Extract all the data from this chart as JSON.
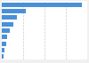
{
  "values": [
    18700000,
    5600000,
    3500000,
    2700000,
    1900000,
    1300000,
    950000,
    600000,
    350000
  ],
  "bar_color": "#4a90d9",
  "background_color": "#f0f0f0",
  "plot_bg_color": "#ffffff",
  "grid_color": "#cccccc",
  "xlim": [
    0,
    20000000
  ],
  "figsize": [
    1.0,
    0.71
  ],
  "dpi": 100
}
